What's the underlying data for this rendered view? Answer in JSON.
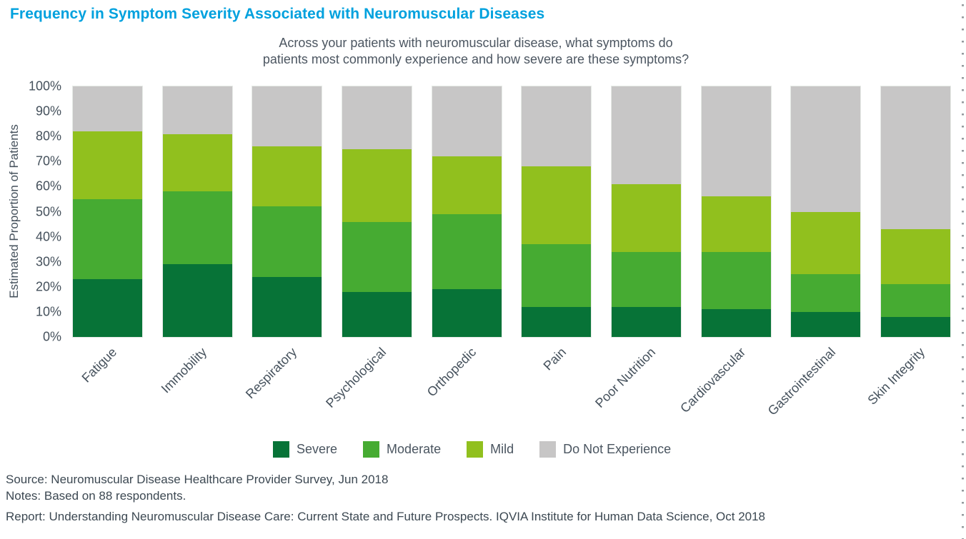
{
  "chart_data": {
    "type": "bar",
    "stacked": true,
    "title": "Frequency in Symptom Severity Associated with Neuromuscular Diseases",
    "subtitle_lines": [
      "Across your patients with neuromuscular disease, what symptoms do",
      "patients most commonly experience and how severe are these symptoms?"
    ],
    "xlabel": "",
    "ylabel": "Estimated Proportion of Patients",
    "ylim": [
      0,
      100
    ],
    "ytick_step": 10,
    "ytick_suffix": "%",
    "grid": false,
    "legend_position": "bottom",
    "categories": [
      "Fatigue",
      "Immobility",
      "Respiratory",
      "Psychological",
      "Orthopedic",
      "Pain",
      "Poor Nutrition",
      "Cardiovascular",
      "Gastrointestinal",
      "Skin Integrity"
    ],
    "series": [
      {
        "name": "Severe",
        "color": "#077337",
        "values": [
          23,
          29,
          24,
          18,
          19,
          12,
          12,
          11,
          10,
          8
        ]
      },
      {
        "name": "Moderate",
        "color": "#46AB32",
        "values": [
          32,
          29,
          28,
          28,
          30,
          25,
          22,
          23,
          15,
          13
        ]
      },
      {
        "name": "Mild",
        "color": "#91C01E",
        "values": [
          27,
          23,
          24,
          29,
          23,
          31,
          27,
          22,
          25,
          22
        ]
      },
      {
        "name": "Do Not Experience",
        "color": "#C7C6C6",
        "values": [
          18,
          19,
          24,
          25,
          28,
          32,
          39,
          44,
          50,
          57
        ]
      }
    ]
  },
  "colors": {
    "title_accent": "#00A1DE",
    "axis_text": "#45515C",
    "footer_text": "#3C4852"
  },
  "footer": {
    "source": "Source: Neuromuscular Disease Healthcare Provider Survey, Jun 2018",
    "notes": "Notes: Based on 88 respondents.",
    "report": "Report: Understanding Neuromuscular Disease Care: Current State and Future Prospects. IQVIA Institute for Human Data Science, Oct 2018"
  }
}
